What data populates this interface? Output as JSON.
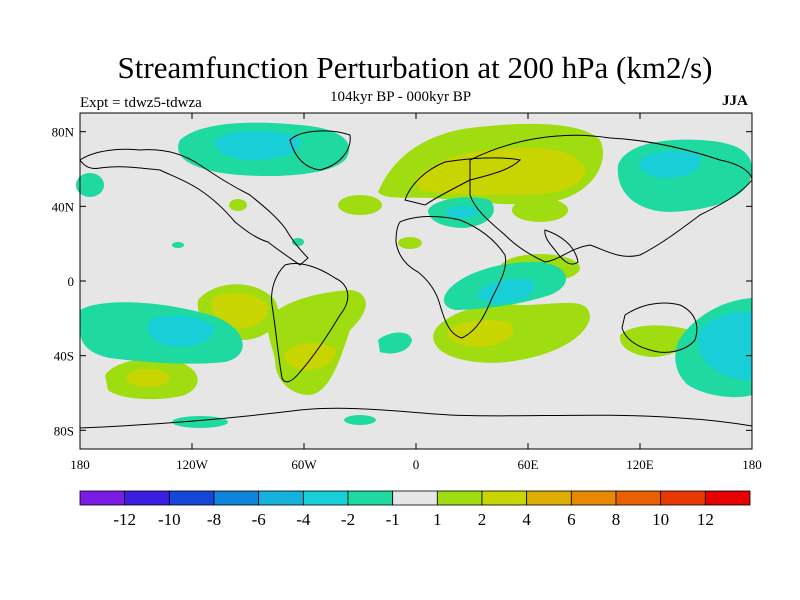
{
  "title": "Streamfunction Perturbation at 200 hPa (km2/s)",
  "subtitle": "104kyr BP - 000kyr BP",
  "left_label": "Expt = tdwz5-tdwza",
  "right_label": "JJA",
  "lat_ticks": [
    "80N",
    "40N",
    "0",
    "40S",
    "80S"
  ],
  "lon_ticks": [
    "180",
    "120W",
    "60W",
    "0",
    "60E",
    "120E",
    "180"
  ],
  "colorbar": {
    "labels": [
      "-12",
      "-10",
      "-8",
      "-6",
      "-4",
      "-2",
      "-1",
      "1",
      "2",
      "4",
      "6",
      "8",
      "10",
      "12"
    ],
    "colors": [
      "#7b1be3",
      "#3a1fe0",
      "#1546d7",
      "#0f84dd",
      "#14b2dc",
      "#18cfd8",
      "#1ed9a0",
      "#e6e6e6",
      "#9fdc10",
      "#c8d500",
      "#ddad00",
      "#e88a00",
      "#e86000",
      "#e83a00",
      "#e60000"
    ]
  },
  "colors": {
    "land_bg": "#e6e6e6",
    "pos1": "#9fdc10",
    "pos2": "#c8d500",
    "neg1": "#1ed9a0",
    "neg2": "#18cfd8"
  }
}
